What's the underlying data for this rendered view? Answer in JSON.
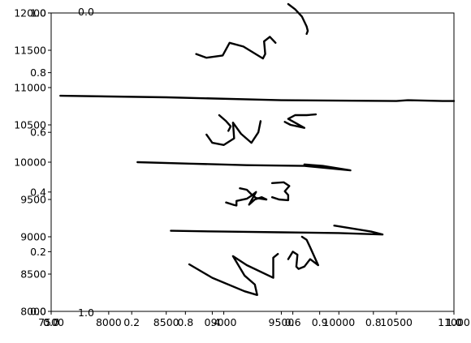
{
  "chart_data": [
    {
      "type": "line",
      "title": "",
      "xlabel": "",
      "ylabel": "",
      "xlim": [
        7500,
        11000
      ],
      "ylim": [
        8000,
        12000
      ],
      "xticks": [
        "7500",
        "8000",
        "8500",
        "9000",
        "9500",
        "10000",
        "10500",
        "11000"
      ],
      "yticks": [
        "8000",
        "8500",
        "9000",
        "9500",
        "10000",
        "10500",
        "11000",
        "11500",
        "12000"
      ],
      "grid": false,
      "series": [
        {
          "points": [
            [
              7580,
              10890
            ],
            [
              8500,
              10870
            ],
            [
              9500,
              10830
            ],
            [
              10500,
              10820
            ],
            [
              10600,
              10830
            ],
            [
              10900,
              10820
            ],
            [
              11000,
              10820
            ]
          ]
        },
        {
          "points": [
            [
              8700,
              8630
            ],
            [
              8900,
              8450
            ],
            [
              9180,
              8270
            ],
            [
              9290,
              8220
            ],
            [
              9270,
              8360
            ],
            [
              9180,
              8480
            ],
            [
              9080,
              8740
            ],
            [
              9200,
              8620
            ],
            [
              9430,
              8450
            ],
            [
              9430,
              8720
            ],
            [
              9470,
              8770
            ]
          ]
        },
        {
          "points": [
            [
              9560,
              8700
            ],
            [
              9600,
              8800
            ],
            [
              9640,
              8760
            ],
            [
              9630,
              8600
            ],
            [
              9650,
              8570
            ],
            [
              9700,
              8600
            ],
            [
              9750,
              8700
            ],
            [
              9820,
              8620
            ],
            [
              9750,
              8860
            ],
            [
              9720,
              8960
            ],
            [
              9680,
              9000
            ]
          ]
        },
        {
          "points": [
            [
              8540,
              9080
            ],
            [
              9000,
              9070
            ],
            [
              9500,
              9060
            ],
            [
              10000,
              9050
            ],
            [
              10380,
              9030
            ],
            [
              10280,
              9070
            ],
            [
              9960,
              9150
            ]
          ]
        },
        {
          "points": [
            [
              9020,
              9460
            ],
            [
              9080,
              9430
            ],
            [
              9110,
              9420
            ],
            [
              9110,
              9480
            ],
            [
              9200,
              9510
            ],
            [
              9240,
              9550
            ],
            [
              9280,
              9600
            ],
            [
              9220,
              9430
            ],
            [
              9270,
              9500
            ],
            [
              9330,
              9530
            ],
            [
              9370,
              9500
            ]
          ]
        },
        {
          "points": [
            [
              9140,
              9650
            ],
            [
              9200,
              9630
            ],
            [
              9240,
              9570
            ],
            [
              9280,
              9520
            ],
            [
              9370,
              9500
            ]
          ]
        },
        {
          "points": [
            [
              9420,
              9720
            ],
            [
              9520,
              9730
            ],
            [
              9570,
              9680
            ],
            [
              9530,
              9610
            ],
            [
              9560,
              9560
            ],
            [
              9560,
              9490
            ],
            [
              9480,
              9500
            ],
            [
              9420,
              9530
            ]
          ]
        },
        {
          "points": [
            [
              8250,
              10000
            ],
            [
              8700,
              9980
            ],
            [
              9200,
              9960
            ],
            [
              9700,
              9950
            ],
            [
              10100,
              9890
            ],
            [
              9860,
              9950
            ],
            [
              9700,
              9970
            ]
          ]
        },
        {
          "points": [
            [
              8850,
              10370
            ],
            [
              8900,
              10260
            ],
            [
              9000,
              10230
            ],
            [
              9090,
              10320
            ],
            [
              9080,
              10530
            ],
            [
              9150,
              10380
            ],
            [
              9240,
              10260
            ],
            [
              9300,
              10400
            ],
            [
              9320,
              10550
            ]
          ]
        },
        {
          "points": [
            [
              8960,
              10630
            ],
            [
              9020,
              10550
            ],
            [
              9060,
              10480
            ],
            [
              9040,
              10420
            ]
          ]
        },
        {
          "points": [
            [
              9530,
              10540
            ],
            [
              9580,
              10500
            ],
            [
              9640,
              10480
            ],
            [
              9700,
              10460
            ],
            [
              9560,
              10580
            ],
            [
              9620,
              10630
            ],
            [
              9720,
              10630
            ],
            [
              9800,
              10640
            ]
          ]
        },
        {
          "points": [
            [
              8760,
              11450
            ],
            [
              8850,
              11400
            ],
            [
              8990,
              11430
            ],
            [
              9050,
              11600
            ],
            [
              9170,
              11550
            ],
            [
              9340,
              11390
            ],
            [
              9360,
              11450
            ],
            [
              9350,
              11620
            ],
            [
              9400,
              11680
            ],
            [
              9450,
              11600
            ]
          ]
        },
        {
          "points": [
            [
              9560,
              12120
            ],
            [
              9620,
              12050
            ],
            [
              9680,
              11950
            ],
            [
              9720,
              11820
            ],
            [
              9730,
              11760
            ],
            [
              9720,
              11720
            ]
          ]
        }
      ]
    },
    {
      "type": "line",
      "xlim": [
        0,
        1
      ],
      "ylim": [
        0,
        1
      ],
      "xticks": [
        "0.0",
        "0.2",
        "0.4",
        "0.6",
        "0.8",
        "1.0"
      ],
      "yticks": [
        "0.0",
        "0.2",
        "0.4",
        "0.6",
        "0.8",
        "1.0"
      ],
      "series": []
    },
    {
      "type": "line",
      "xlim": [
        0.7,
        1.0
      ],
      "xticks": [
        "0.7",
        "0.8",
        "0.9",
        "1.0"
      ],
      "corner_labels": [
        "0.0",
        "1.0"
      ]
    }
  ]
}
